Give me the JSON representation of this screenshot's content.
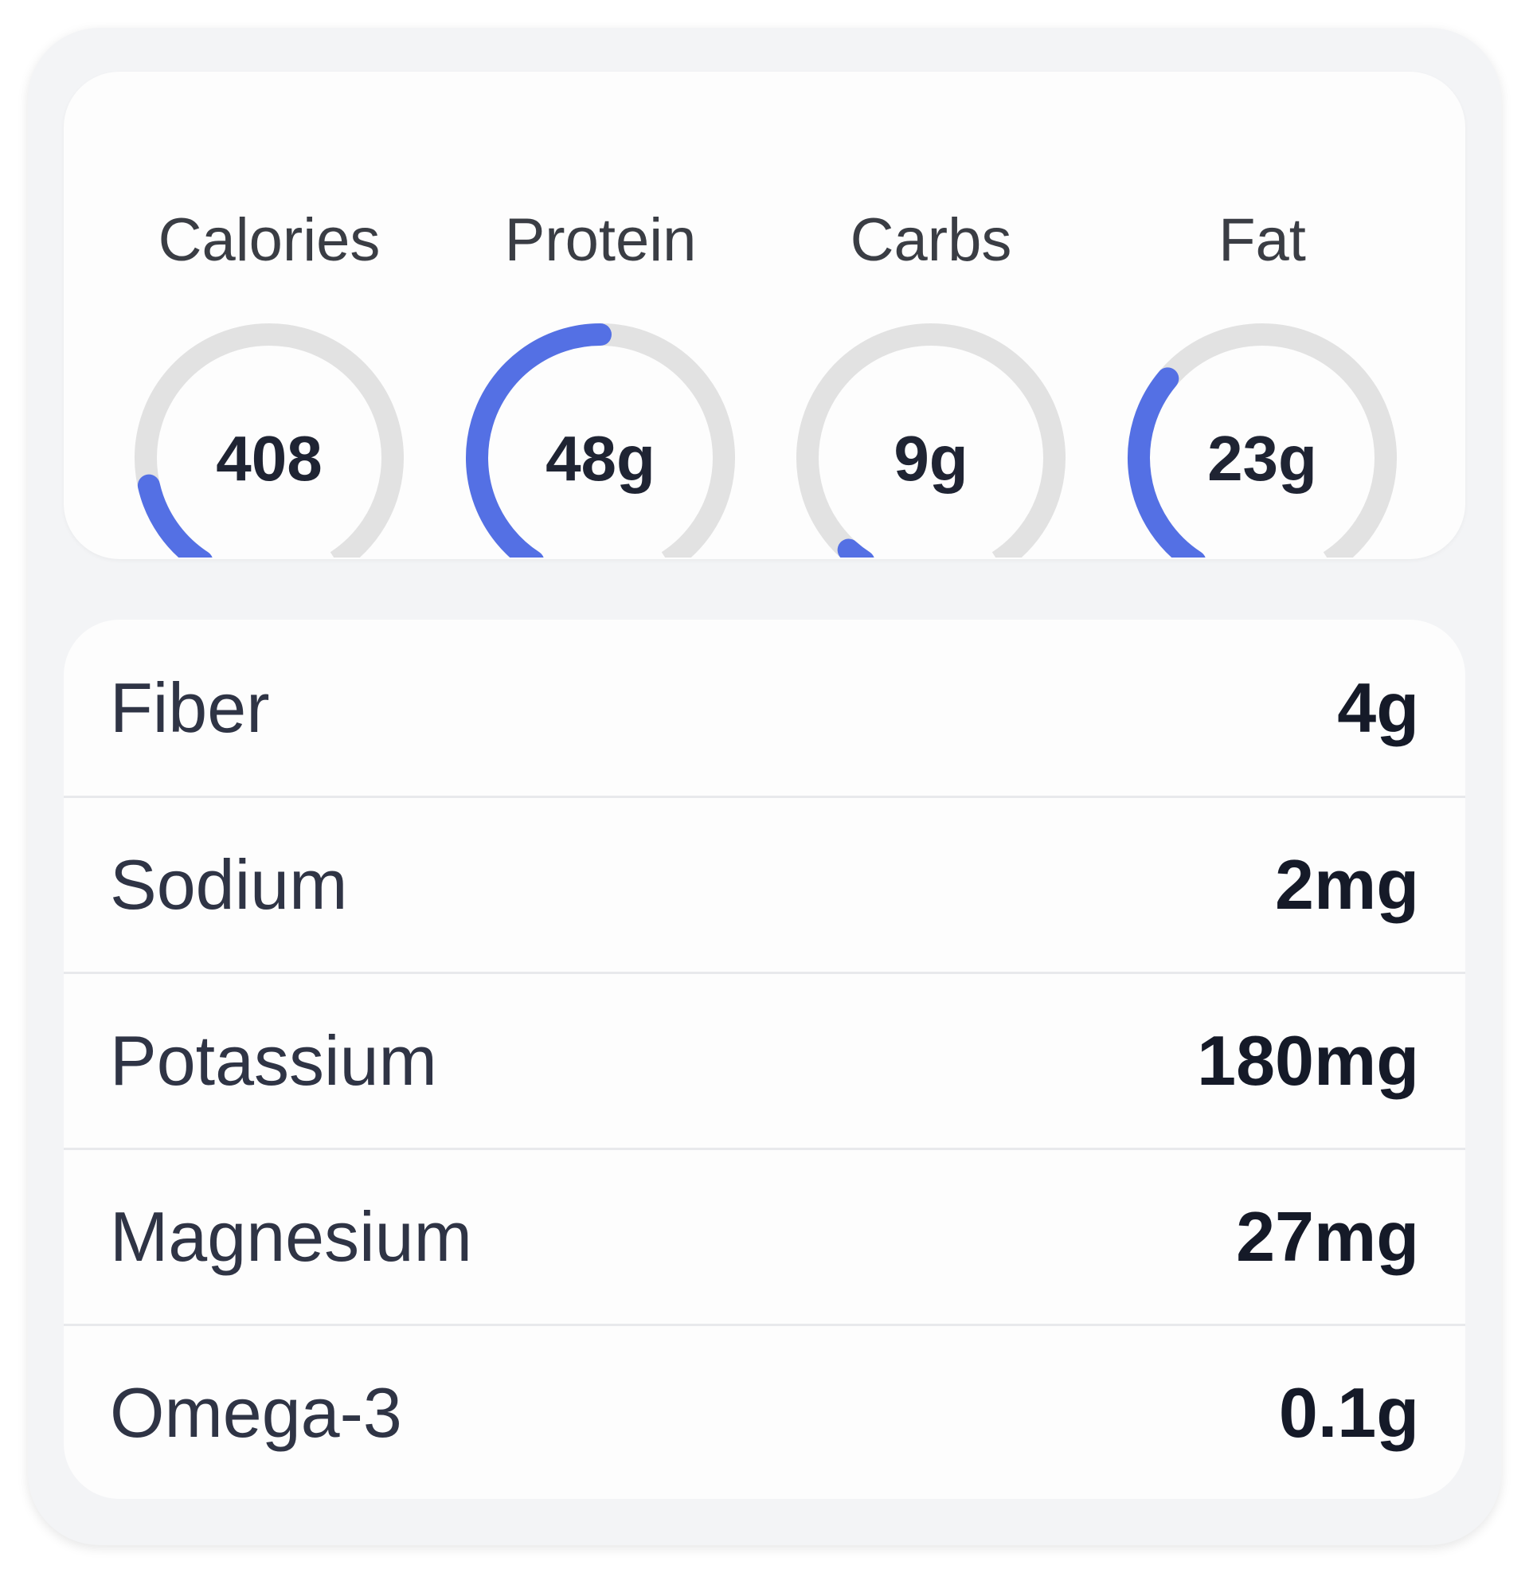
{
  "colors": {
    "accent": "#5470e4",
    "track": "#e2e2e2"
  },
  "macros": [
    {
      "label": "Calories",
      "value": "408",
      "progress": 0.15
    },
    {
      "label": "Protein",
      "value": "48g",
      "progress": 0.5
    },
    {
      "label": "Carbs",
      "value": "9g",
      "progress": 0.03
    },
    {
      "label": "Fat",
      "value": "23g",
      "progress": 0.33
    }
  ],
  "nutrients": [
    {
      "label": "Fiber",
      "value": "4g"
    },
    {
      "label": "Sodium",
      "value": "2mg"
    },
    {
      "label": "Potassium",
      "value": "180mg"
    },
    {
      "label": "Magnesium",
      "value": "27mg"
    },
    {
      "label": "Omega-3",
      "value": "0.1g"
    }
  ]
}
